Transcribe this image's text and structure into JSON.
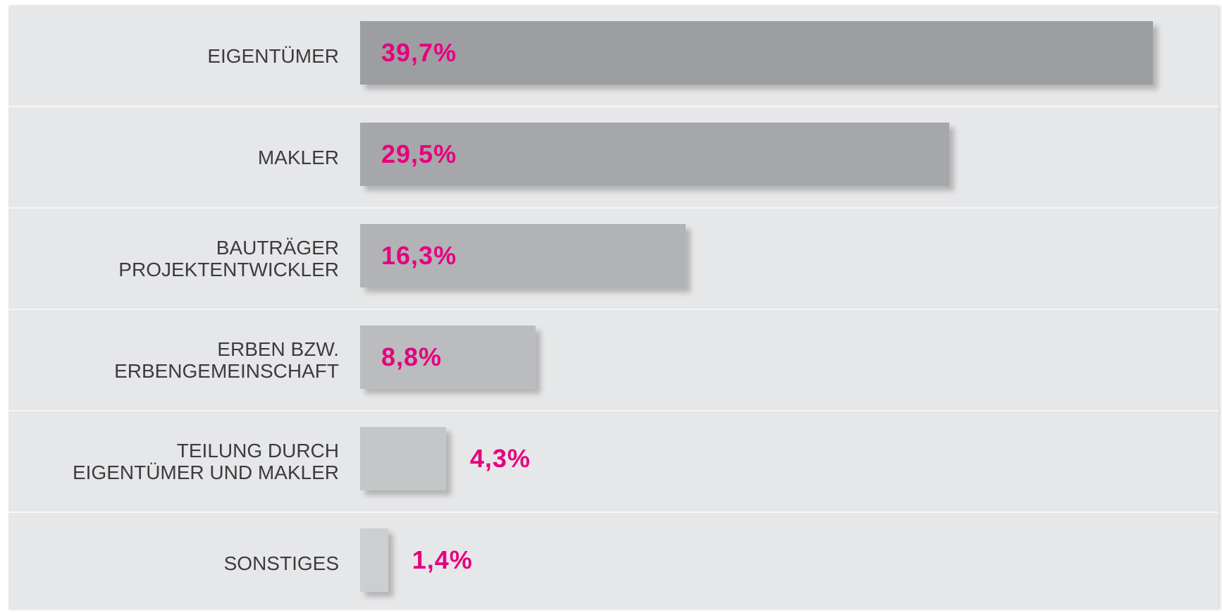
{
  "chart_data": {
    "type": "bar",
    "orientation": "horizontal",
    "categories": [
      "EIGENTÜMER",
      "MAKLER",
      "BAUTRÄGER\nPROJEKTENTWICKLER",
      "ERBEN BZW.\nERBENGEMEINSCHAFT",
      "TEILUNG DURCH\nEIGENTÜMER UND MAKLER",
      "SONSTIGES"
    ],
    "values": [
      39.7,
      29.5,
      16.3,
      8.8,
      4.3,
      1.4
    ],
    "value_labels": [
      "39,7%",
      "29,5%",
      "16,3%",
      "8,8%",
      "4,3%",
      "1,4%"
    ],
    "colors": [
      "#9d9ea2",
      "#a6a7aa",
      "#b2b3b6",
      "#bbbcbf",
      "#c5c6c8",
      "#cdcecf"
    ],
    "label_color": "#e6007e"
  }
}
